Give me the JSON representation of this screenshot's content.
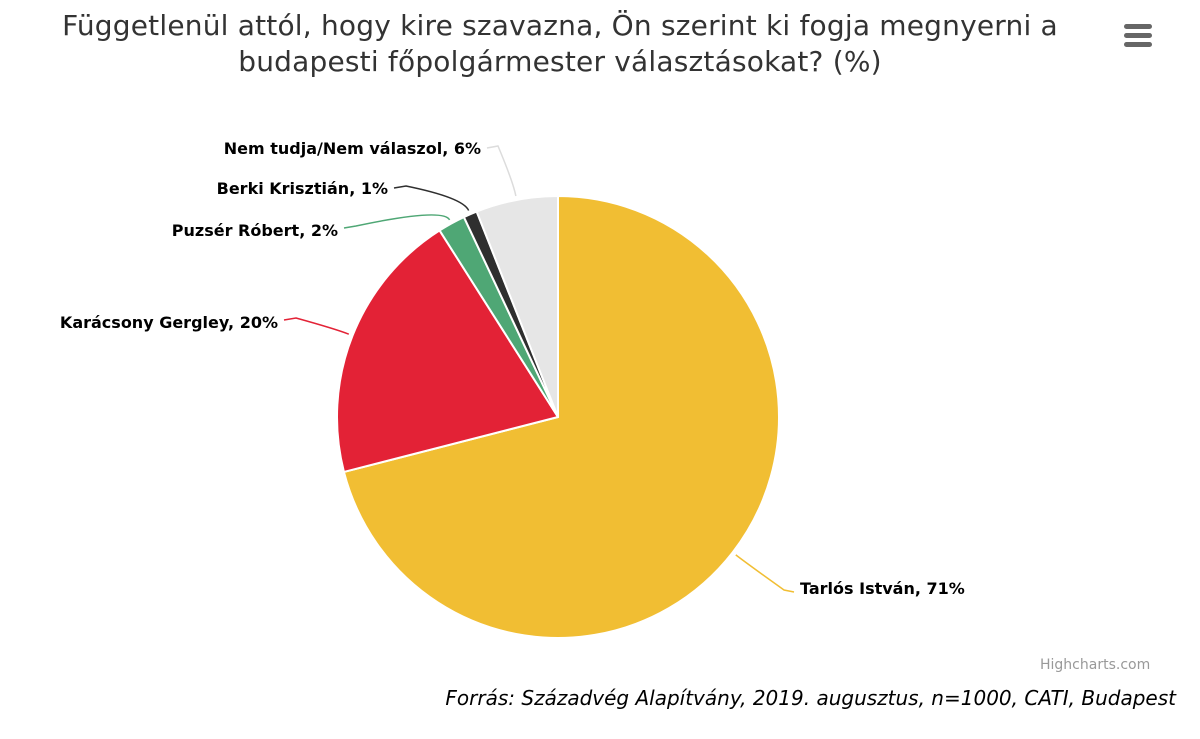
{
  "chart_data": {
    "type": "pie",
    "title": "Függetlenül attól, hogy kire szavazna, Ön szerint ki fogja megnyerni a budapesti főpolgármester választásokat? (%)",
    "unit": "%",
    "slices": [
      {
        "name": "Tarlós István",
        "value": 71,
        "label": "Tarlós István, 71%",
        "color": "#F1BE33"
      },
      {
        "name": "Karácsony Gergley",
        "value": 20,
        "label": "Karácsony Gergley, 20%",
        "color": "#E32236"
      },
      {
        "name": "Puzsér Róbert",
        "value": 2,
        "label": "Puzsér Róbert, 2%",
        "color": "#4FA775"
      },
      {
        "name": "Berki Krisztián",
        "value": 1,
        "label": "Berki Krisztián, 1%",
        "color": "#2F2F2F"
      },
      {
        "name": "Nem tudja/Nem válaszol",
        "value": 6,
        "label": "Nem tudja/Nem válaszol, 6%",
        "color": "#E6E6E6"
      }
    ],
    "legend": "none",
    "data_labels": "outside-with-connectors"
  },
  "menu": {
    "icon": "hamburger-menu-icon"
  },
  "credits": "Highcharts.com",
  "source": "Forrás: Századvég Alapítvány, 2019. augusztus, n=1000, CATI, Budapest"
}
